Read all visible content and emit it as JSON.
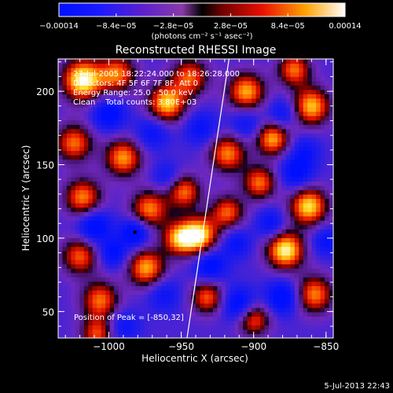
{
  "chart_data": {
    "type": "heatmap",
    "title": "Reconstructed RHESSI Image",
    "xlabel": "Heliocentric X (arcsec)",
    "ylabel": "Heliocentric Y (arcsec)",
    "xlim": [
      -1035,
      -845
    ],
    "ylim": [
      32,
      222
    ],
    "x_ticks": [
      -1000,
      -950,
      -900,
      -850
    ],
    "x_tick_labels": [
      "−1000",
      "−950",
      "−900",
      "−850"
    ],
    "y_ticks": [
      50,
      100,
      150,
      200
    ],
    "y_tick_labels": [
      "50",
      "100",
      "150",
      "200"
    ],
    "colorbar": {
      "range": [
        -0.00014,
        0.00014
      ],
      "tick_labels": [
        "−0.00014",
        "−8.4e−05",
        "−2.8e−05",
        "2.8e−05",
        "8.4e−05",
        "0.00014"
      ],
      "unit_label": "(photons cm⁻² s⁻¹ asec⁻²)"
    },
    "annotations": [
      "27-Jul-2005 18:22:24.000 to 18:26:28.000",
      "Detectors: 4F 5F 6F 7F 8F, Att 0",
      "Energy Range: 25.0 - 50.0 keV",
      "Clean    Total counts: 3.80E+03"
    ],
    "peak_label": "Position of Peak = [-850,32]",
    "peak_marker": [
      -982,
      104
    ],
    "limb_line": {
      "from": [
        -946,
        32
      ],
      "to": [
        -917,
        222
      ]
    },
    "blobs": [
      {
        "x": -1018,
        "y": 208,
        "v": 1.0,
        "s": 10
      },
      {
        "x": -994,
        "y": 212,
        "v": 0.55,
        "s": 9
      },
      {
        "x": -1024,
        "y": 165,
        "v": 0.55,
        "s": 9
      },
      {
        "x": -1018,
        "y": 128,
        "v": 0.6,
        "s": 9
      },
      {
        "x": -1020,
        "y": 88,
        "v": 0.5,
        "s": 9
      },
      {
        "x": -1006,
        "y": 58,
        "v": 0.55,
        "s": 9
      },
      {
        "x": -1008,
        "y": 35,
        "v": 0.45,
        "s": 8
      },
      {
        "x": -990,
        "y": 155,
        "v": 0.65,
        "s": 9
      },
      {
        "x": -972,
        "y": 120,
        "v": 0.6,
        "s": 9
      },
      {
        "x": -974,
        "y": 80,
        "v": 0.7,
        "s": 9
      },
      {
        "x": -960,
        "y": 192,
        "v": 0.8,
        "s": 9
      },
      {
        "x": -944,
        "y": 210,
        "v": 0.5,
        "s": 9
      },
      {
        "x": -948,
        "y": 132,
        "v": 0.55,
        "s": 8
      },
      {
        "x": -952,
        "y": 100,
        "v": 0.55,
        "s": 8
      },
      {
        "x": -938,
        "y": 102,
        "v": 0.95,
        "s": 9
      },
      {
        "x": -932,
        "y": 60,
        "v": 0.5,
        "s": 8
      },
      {
        "x": -918,
        "y": 158,
        "v": 0.6,
        "s": 9
      },
      {
        "x": -918,
        "y": 118,
        "v": 0.5,
        "s": 8
      },
      {
        "x": -905,
        "y": 200,
        "v": 0.7,
        "s": 9
      },
      {
        "x": -896,
        "y": 138,
        "v": 0.55,
        "s": 8
      },
      {
        "x": -887,
        "y": 168,
        "v": 0.7,
        "s": 8
      },
      {
        "x": -878,
        "y": 92,
        "v": 0.95,
        "s": 9
      },
      {
        "x": -872,
        "y": 215,
        "v": 0.55,
        "s": 8
      },
      {
        "x": -860,
        "y": 190,
        "v": 0.75,
        "s": 9
      },
      {
        "x": -862,
        "y": 122,
        "v": 0.85,
        "s": 9
      },
      {
        "x": -858,
        "y": 62,
        "v": 0.6,
        "s": 9
      },
      {
        "x": -900,
        "y": 45,
        "v": 0.5,
        "s": 8
      },
      {
        "x": -1000,
        "y": 185,
        "v": -0.8,
        "s": 8
      },
      {
        "x": -1010,
        "y": 108,
        "v": -0.85,
        "s": 8
      },
      {
        "x": -997,
        "y": 90,
        "v": -0.7,
        "s": 7
      },
      {
        "x": -982,
        "y": 104,
        "v": -0.9,
        "s": 7
      },
      {
        "x": -970,
        "y": 172,
        "v": -0.6,
        "s": 8
      },
      {
        "x": -960,
        "y": 142,
        "v": -0.5,
        "s": 7
      },
      {
        "x": -962,
        "y": 62,
        "v": -0.55,
        "s": 8
      },
      {
        "x": -990,
        "y": 40,
        "v": -0.55,
        "s": 8
      },
      {
        "x": -936,
        "y": 175,
        "v": -0.6,
        "s": 8
      },
      {
        "x": -930,
        "y": 82,
        "v": -0.8,
        "s": 8
      },
      {
        "x": -910,
        "y": 55,
        "v": -0.85,
        "s": 8
      },
      {
        "x": -912,
        "y": 97,
        "v": -0.6,
        "s": 7
      },
      {
        "x": -905,
        "y": 178,
        "v": -0.55,
        "s": 8
      },
      {
        "x": -880,
        "y": 185,
        "v": -0.6,
        "s": 7
      },
      {
        "x": -880,
        "y": 60,
        "v": -0.85,
        "s": 8
      },
      {
        "x": -870,
        "y": 145,
        "v": -0.75,
        "s": 8
      },
      {
        "x": -888,
        "y": 110,
        "v": -0.65,
        "s": 7
      },
      {
        "x": -850,
        "y": 98,
        "v": -0.6,
        "s": 7
      },
      {
        "x": -864,
        "y": 160,
        "v": -0.5,
        "s": 7
      }
    ]
  },
  "footer": {
    "timestamp": "5-Jul-2013 22:43"
  }
}
